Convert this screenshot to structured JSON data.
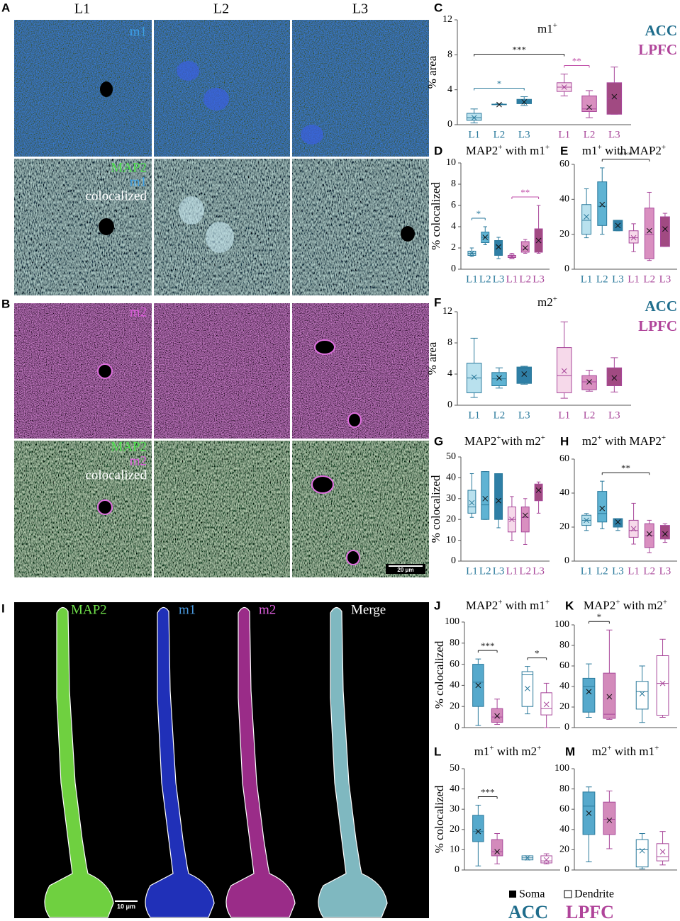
{
  "figure": {
    "panels": [
      "A",
      "B",
      "I"
    ],
    "columns": [
      "L1",
      "L2",
      "L3"
    ],
    "a_top": "m1",
    "a_bottom": [
      "MAP2",
      "m1",
      "colocalized"
    ],
    "b_top": "m2",
    "b_bottom": [
      "MAP2",
      "m2",
      "colocalized"
    ],
    "scale_b": "20 μm",
    "i_labels": [
      "MAP2",
      "m1",
      "m2",
      "Merge"
    ],
    "scale_i": "10 μm",
    "legend_c": [
      "ACC",
      "LPFC"
    ],
    "legend_f": [
      "ACC",
      "LPFC"
    ],
    "legend_bottom": {
      "marks": [
        "Soma",
        "Dendrite"
      ],
      "regions": [
        "ACC",
        "LPFC"
      ]
    }
  },
  "chart_data": [
    {
      "type": "box",
      "panel": "C",
      "title": [
        {
          "text": "m1",
          "sup": false
        },
        {
          "text": "+",
          "sup": true
        }
      ],
      "ylabel": "% area",
      "ylim": [
        0,
        12
      ],
      "yticks": [
        0,
        4,
        8,
        12
      ],
      "categories": [
        "L1",
        "L2",
        "L3",
        "L1",
        "L2",
        "L3"
      ],
      "boxes": [
        {
          "min": 0.2,
          "q1": 0.5,
          "median": 0.8,
          "q3": 1.3,
          "max": 1.8,
          "mean": 0.8,
          "fill": "#b9e1ee",
          "color": "#2b7a9c"
        },
        {
          "min": 2.3,
          "q1": 2.3,
          "median": 2.3,
          "q3": 2.35,
          "max": 2.4,
          "mean": 2.3,
          "fill": "#5fb3d3",
          "color": "#2b7a9c"
        },
        {
          "min": 2.2,
          "q1": 2.4,
          "median": 2.6,
          "q3": 2.9,
          "max": 3.2,
          "mean": 2.6,
          "fill": "#2f7fa6",
          "color": "#2b7a9c"
        },
        {
          "min": 3.3,
          "q1": 3.8,
          "median": 4.3,
          "q3": 4.8,
          "max": 5.8,
          "mean": 4.3,
          "fill": "#f6d9ea",
          "color": "#a8479a"
        },
        {
          "min": 0.8,
          "q1": 1.5,
          "median": 1.8,
          "q3": 3.3,
          "max": 3.9,
          "mean": 2.0,
          "fill": "#d98fc0",
          "color": "#a8479a"
        },
        {
          "min": 1.2,
          "q1": 1.2,
          "median": 3.0,
          "q3": 4.8,
          "max": 6.6,
          "mean": 3.2,
          "fill": "#a14a82",
          "color": "#a8479a"
        }
      ],
      "brackets": [
        {
          "from": 0,
          "to": 2,
          "label": "*",
          "color": "#2b7a9c"
        },
        {
          "from": 3,
          "to": 4,
          "label": "**",
          "color": "#c04fa8"
        },
        {
          "from": 0,
          "to": 3,
          "label": "***",
          "color": "#222222"
        }
      ]
    },
    {
      "type": "box",
      "panel": "D",
      "title": [
        {
          "text": "MAP2",
          "sup": false
        },
        {
          "text": "+",
          "sup": true
        },
        {
          "text": " with m1",
          "sup": false
        },
        {
          "text": "+",
          "sup": true
        }
      ],
      "ylabel": "% colocalized",
      "ylim": [
        0,
        10
      ],
      "yticks": [
        0,
        2,
        4,
        6,
        8,
        10
      ],
      "categories": [
        "L1",
        "L2",
        "L3",
        "L1",
        "L2",
        "L3"
      ],
      "boxes": [
        {
          "min": 1.2,
          "q1": 1.3,
          "median": 1.5,
          "q3": 1.7,
          "max": 2.0,
          "mean": 1.5,
          "fill": "#b9e1ee",
          "color": "#2b7a9c"
        },
        {
          "min": 2.3,
          "q1": 2.5,
          "median": 3.0,
          "q3": 3.5,
          "max": 4.0,
          "mean": 3.0,
          "fill": "#5fb3d3",
          "color": "#2b7a9c"
        },
        {
          "min": 1.0,
          "q1": 1.3,
          "median": 2.2,
          "q3": 2.7,
          "max": 3.0,
          "mean": 2.1,
          "fill": "#2f7fa6",
          "color": "#2b7a9c"
        },
        {
          "min": 1.0,
          "q1": 1.1,
          "median": 1.2,
          "q3": 1.3,
          "max": 1.5,
          "mean": 1.2,
          "fill": "#f6d9ea",
          "color": "#a8479a"
        },
        {
          "min": 1.5,
          "q1": 1.6,
          "median": 1.9,
          "q3": 2.6,
          "max": 2.8,
          "mean": 2.0,
          "fill": "#d98fc0",
          "color": "#a8479a"
        },
        {
          "min": 1.5,
          "q1": 1.6,
          "median": 2.6,
          "q3": 3.8,
          "max": 6.0,
          "mean": 2.7,
          "fill": "#a14a82",
          "color": "#a8479a"
        }
      ],
      "brackets": [
        {
          "from": 0,
          "to": 1,
          "label": "*",
          "color": "#2b7a9c"
        },
        {
          "from": 3,
          "to": 5,
          "label": "**",
          "color": "#c04fa8"
        }
      ]
    },
    {
      "type": "box",
      "panel": "E",
      "title": [
        {
          "text": "m1",
          "sup": false
        },
        {
          "text": "+",
          "sup": true
        },
        {
          "text": " with MAP2",
          "sup": false
        },
        {
          "text": "+",
          "sup": true
        }
      ],
      "ylim": [
        0,
        60
      ],
      "yticks": [
        0,
        20,
        40,
        60
      ],
      "categories": [
        "L1",
        "L2",
        "L3",
        "L1",
        "L2",
        "L3"
      ],
      "boxes": [
        {
          "min": 18,
          "q1": 20,
          "median": 28,
          "q3": 37,
          "max": 46,
          "mean": 30,
          "fill": "#b9e1ee",
          "color": "#2b7a9c"
        },
        {
          "min": 20,
          "q1": 25,
          "median": 36,
          "q3": 50,
          "max": 58,
          "mean": 37,
          "fill": "#5fb3d3",
          "color": "#2b7a9c"
        },
        {
          "min": 22,
          "q1": 22,
          "median": 25,
          "q3": 28,
          "max": 28,
          "mean": 25,
          "fill": "#2f7fa6",
          "color": "#2b7a9c"
        },
        {
          "min": 10,
          "q1": 15,
          "median": 18,
          "q3": 22,
          "max": 26,
          "mean": 18,
          "fill": "#f6d9ea",
          "color": "#a8479a"
        },
        {
          "min": 5,
          "q1": 6,
          "median": 20,
          "q3": 35,
          "max": 44,
          "mean": 22,
          "fill": "#d98fc0",
          "color": "#a8479a"
        },
        {
          "min": 13,
          "q1": 13,
          "median": 22,
          "q3": 30,
          "max": 32,
          "mean": 23,
          "fill": "#a14a82",
          "color": "#a8479a"
        }
      ],
      "brackets": [
        {
          "from": 1,
          "to": 4,
          "label": "***",
          "color": "#222222"
        }
      ]
    },
    {
      "type": "box",
      "panel": "F",
      "title": [
        {
          "text": "m2",
          "sup": false
        },
        {
          "text": "+",
          "sup": true
        }
      ],
      "ylabel": "% area",
      "ylim": [
        0,
        12
      ],
      "yticks": [
        0,
        4,
        8,
        12
      ],
      "categories": [
        "L1",
        "L2",
        "L3",
        "L1",
        "L2",
        "L3"
      ],
      "boxes": [
        {
          "min": 1.0,
          "q1": 1.6,
          "median": 3.5,
          "q3": 5.4,
          "max": 8.6,
          "mean": 3.6,
          "fill": "#b9e1ee",
          "color": "#2b7a9c"
        },
        {
          "min": 2.2,
          "q1": 2.5,
          "median": 3.4,
          "q3": 4.2,
          "max": 4.8,
          "mean": 3.5,
          "fill": "#5fb3d3",
          "color": "#2b7a9c"
        },
        {
          "min": 2.7,
          "q1": 2.8,
          "median": 4.7,
          "q3": 4.9,
          "max": 5.0,
          "mean": 4.0,
          "fill": "#2f7fa6",
          "color": "#2b7a9c"
        },
        {
          "min": 0.9,
          "q1": 1.6,
          "median": 3.8,
          "q3": 7.4,
          "max": 10.7,
          "mean": 4.4,
          "fill": "#f6d9ea",
          "color": "#a8479a"
        },
        {
          "min": 1.8,
          "q1": 2.0,
          "median": 3.0,
          "q3": 3.8,
          "max": 4.5,
          "mean": 3.0,
          "fill": "#d98fc0",
          "color": "#a8479a"
        },
        {
          "min": 1.7,
          "q1": 2.5,
          "median": 3.5,
          "q3": 4.8,
          "max": 6.1,
          "mean": 3.5,
          "fill": "#a14a82",
          "color": "#a8479a"
        }
      ],
      "brackets": []
    },
    {
      "type": "box",
      "panel": "G",
      "title": [
        {
          "text": "MAP2",
          "sup": false
        },
        {
          "text": "+",
          "sup": true
        },
        {
          "text": "with m2",
          "sup": false
        },
        {
          "text": "+",
          "sup": true
        }
      ],
      "ylabel": "% colocalized",
      "ylim": [
        0,
        50
      ],
      "yticks": [
        0,
        10,
        20,
        30,
        40,
        50
      ],
      "categories": [
        "L1",
        "L2",
        "L3",
        "L1",
        "L2",
        "L3"
      ],
      "boxes": [
        {
          "min": 21,
          "q1": 23,
          "median": 26,
          "q3": 34,
          "max": 42,
          "mean": 28,
          "fill": "#b9e1ee",
          "color": "#2b7a9c"
        },
        {
          "min": 20,
          "q1": 20,
          "median": 27,
          "q3": 43,
          "max": 43,
          "mean": 30,
          "fill": "#5fb3d3",
          "color": "#2b7a9c"
        },
        {
          "min": 16,
          "q1": 20,
          "median": 27,
          "q3": 42,
          "max": 42,
          "mean": 29,
          "fill": "#2f7fa6",
          "color": "#2b7a9c"
        },
        {
          "min": 10,
          "q1": 14,
          "median": 20,
          "q3": 26,
          "max": 31,
          "mean": 20,
          "fill": "#f6d9ea",
          "color": "#a8479a"
        },
        {
          "min": 8,
          "q1": 14,
          "median": 21,
          "q3": 26,
          "max": 30,
          "mean": 22,
          "fill": "#d98fc0",
          "color": "#a8479a"
        },
        {
          "min": 23,
          "q1": 29,
          "median": 33,
          "q3": 37,
          "max": 38,
          "mean": 34,
          "fill": "#a14a82",
          "color": "#a8479a"
        }
      ],
      "brackets": []
    },
    {
      "type": "box",
      "panel": "H",
      "title": [
        {
          "text": "m2",
          "sup": false
        },
        {
          "text": "+",
          "sup": true
        },
        {
          "text": " with MAP2",
          "sup": false
        },
        {
          "text": "+",
          "sup": true
        }
      ],
      "ylim": [
        0,
        60
      ],
      "yticks": [
        0,
        20,
        40,
        60
      ],
      "categories": [
        "L1",
        "L2",
        "L3",
        "L1",
        "L2",
        "L3"
      ],
      "boxes": [
        {
          "min": 18,
          "q1": 21,
          "median": 24,
          "q3": 27,
          "max": 28,
          "mean": 24,
          "fill": "#b9e1ee",
          "color": "#2b7a9c"
        },
        {
          "min": 19,
          "q1": 23,
          "median": 28,
          "q3": 41,
          "max": 47,
          "mean": 31,
          "fill": "#5fb3d3",
          "color": "#2b7a9c"
        },
        {
          "min": 18,
          "q1": 20,
          "median": 22,
          "q3": 25,
          "max": 25,
          "mean": 23,
          "fill": "#2f7fa6",
          "color": "#2b7a9c"
        },
        {
          "min": 10,
          "q1": 14,
          "median": 18,
          "q3": 24,
          "max": 34,
          "mean": 19,
          "fill": "#f6d9ea",
          "color": "#a8479a"
        },
        {
          "min": 5,
          "q1": 8,
          "median": 15,
          "q3": 22,
          "max": 24,
          "mean": 16,
          "fill": "#d98fc0",
          "color": "#a8479a"
        },
        {
          "min": 11,
          "q1": 13,
          "median": 16,
          "q3": 21,
          "max": 22,
          "mean": 16,
          "fill": "#a14a82",
          "color": "#a8479a"
        }
      ],
      "brackets": [
        {
          "from": 1,
          "to": 4,
          "label": "**",
          "color": "#222222"
        }
      ]
    },
    {
      "type": "box",
      "panel": "J",
      "title": [
        {
          "text": "MAP2",
          "sup": false
        },
        {
          "text": "+",
          "sup": true
        },
        {
          "text": " with m1",
          "sup": false
        },
        {
          "text": "+",
          "sup": true
        }
      ],
      "ylabel": "% colocalized",
      "ylim": [
        0,
        100
      ],
      "yticks": [
        0,
        20,
        40,
        60,
        80,
        100
      ],
      "boxes": [
        {
          "min": 2,
          "q1": 20,
          "median": 43,
          "q3": 60,
          "max": 65,
          "mean": 40,
          "fill": "#56a9cc",
          "color": "#2b7a9c"
        },
        {
          "min": 3,
          "q1": 5,
          "median": 10,
          "q3": 18,
          "max": 27,
          "mean": 11,
          "fill": "#d38abb",
          "color": "#a8479a"
        },
        {
          "min": 13,
          "q1": 20,
          "median": 50,
          "q3": 53,
          "max": 58,
          "mean": 37,
          "fill": "#ffffff",
          "color": "#2b7a9c"
        },
        {
          "min": 0,
          "q1": 12,
          "median": 18,
          "q3": 33,
          "max": 42,
          "mean": 22,
          "fill": "#ffffff",
          "color": "#a8479a"
        }
      ],
      "brackets": [
        {
          "from": 0,
          "to": 1,
          "label": "***",
          "color": "#222222"
        },
        {
          "from": 2,
          "to": 3,
          "label": "*",
          "color": "#222222"
        }
      ]
    },
    {
      "type": "box",
      "panel": "K",
      "title": [
        {
          "text": "MAP2",
          "sup": false
        },
        {
          "text": "+",
          "sup": true
        },
        {
          "text": " with m2",
          "sup": false
        },
        {
          "text": "+",
          "sup": true
        }
      ],
      "ylim": [
        0,
        100
      ],
      "yticks": [
        0,
        20,
        40,
        60,
        80,
        100
      ],
      "boxes": [
        {
          "min": 10,
          "q1": 15,
          "median": 40,
          "q3": 48,
          "max": 62,
          "mean": 35,
          "fill": "#56a9cc",
          "color": "#2b7a9c"
        },
        {
          "min": 8,
          "q1": 9,
          "median": 13,
          "q3": 53,
          "max": 95,
          "mean": 30,
          "fill": "#d38abb",
          "color": "#a8479a"
        },
        {
          "min": 5,
          "q1": 18,
          "median": 35,
          "q3": 45,
          "max": 60,
          "mean": 33,
          "fill": "#ffffff",
          "color": "#2b7a9c"
        },
        {
          "min": 10,
          "q1": 12,
          "median": 43,
          "q3": 70,
          "max": 86,
          "mean": 43,
          "fill": "#ffffff",
          "color": "#a8479a"
        }
      ],
      "brackets": [
        {
          "from": 0,
          "to": 1,
          "label": "*",
          "color": "#222222"
        }
      ]
    },
    {
      "type": "box",
      "panel": "L",
      "title": [
        {
          "text": "m1",
          "sup": false
        },
        {
          "text": "+",
          "sup": true
        },
        {
          "text": " with m2",
          "sup": false
        },
        {
          "text": "+",
          "sup": true
        }
      ],
      "ylabel": "% colocalized",
      "ylim": [
        0,
        50
      ],
      "yticks": [
        0,
        10,
        20,
        30,
        40,
        50
      ],
      "boxes": [
        {
          "min": 2,
          "q1": 14,
          "median": 19,
          "q3": 27,
          "max": 32,
          "mean": 19,
          "fill": "#56a9cc",
          "color": "#2b7a9c"
        },
        {
          "min": 3,
          "q1": 7,
          "median": 9,
          "q3": 15,
          "max": 18,
          "mean": 9,
          "fill": "#d38abb",
          "color": "#a8479a"
        },
        {
          "min": 5,
          "q1": 5,
          "median": 6,
          "q3": 7,
          "max": 7,
          "mean": 6,
          "fill": "#ffffff",
          "color": "#2b7a9c"
        },
        {
          "min": 3,
          "q1": 3.5,
          "median": 4.5,
          "q3": 7,
          "max": 8,
          "mean": 5,
          "fill": "#ffffff",
          "color": "#a8479a"
        }
      ],
      "brackets": [
        {
          "from": 0,
          "to": 1,
          "label": "***",
          "color": "#222222"
        }
      ]
    },
    {
      "type": "box",
      "panel": "M",
      "title": [
        {
          "text": "m2",
          "sup": false
        },
        {
          "text": "+",
          "sup": true
        },
        {
          "text": " with m1",
          "sup": false
        },
        {
          "text": "+",
          "sup": true
        }
      ],
      "ylim": [
        0,
        100
      ],
      "yticks": [
        0,
        20,
        40,
        60,
        80,
        100
      ],
      "boxes": [
        {
          "min": 8,
          "q1": 35,
          "median": 63,
          "q3": 77,
          "max": 82,
          "mean": 56,
          "fill": "#56a9cc",
          "color": "#2b7a9c"
        },
        {
          "min": 21,
          "q1": 35,
          "median": 50,
          "q3": 67,
          "max": 78,
          "mean": 49,
          "fill": "#d38abb",
          "color": "#a8479a"
        },
        {
          "min": 1,
          "q1": 3,
          "median": 20,
          "q3": 30,
          "max": 36,
          "mean": 19,
          "fill": "#ffffff",
          "color": "#2b7a9c"
        },
        {
          "min": 5,
          "q1": 9,
          "median": 13,
          "q3": 26,
          "max": 38,
          "mean": 18,
          "fill": "#ffffff",
          "color": "#a8479a"
        }
      ],
      "brackets": []
    }
  ]
}
